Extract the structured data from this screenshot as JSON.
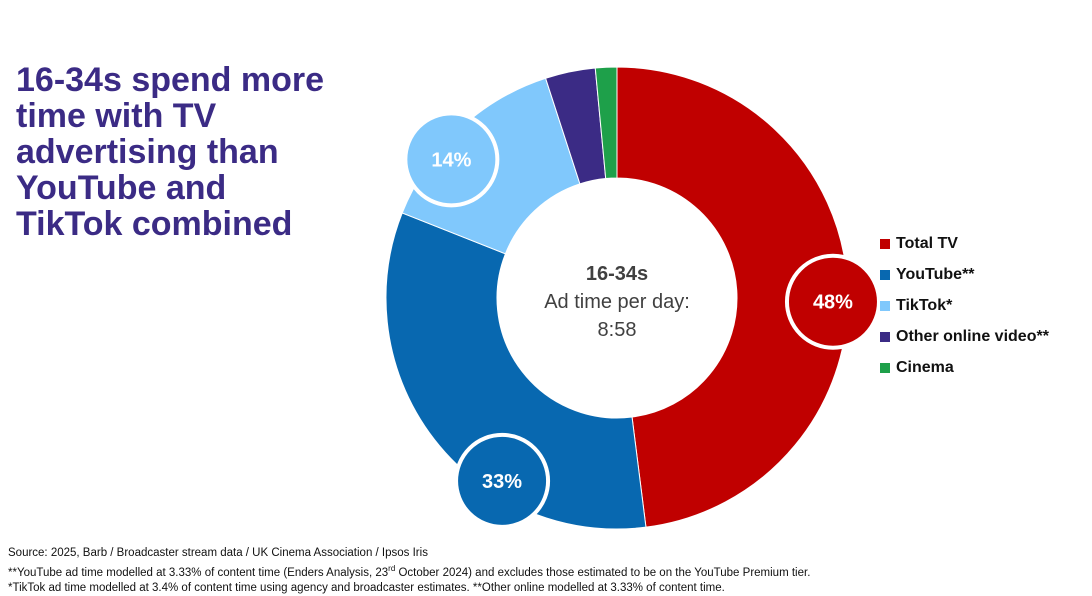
{
  "headline": "16-34s spend more time with TV advertising than YouTube and TikTok combined",
  "chart_data": {
    "type": "pie",
    "variant": "donut",
    "title": "",
    "center_label": {
      "title": "16-34s",
      "line1": "Ad time per day:",
      "line2": "8:58"
    },
    "slices": [
      {
        "name": "Total TV",
        "value": 48,
        "color": "#c00000",
        "label": "48%",
        "highlight": true
      },
      {
        "name": "YouTube**",
        "value": 33,
        "color": "#0868b0",
        "label": "33%",
        "highlight": true
      },
      {
        "name": "TikTok*",
        "value": 14,
        "color": "#80c8fc",
        "label": "14%",
        "highlight": true
      },
      {
        "name": "Other online video**",
        "value": 3.5,
        "color": "#3b2b85",
        "label": "",
        "highlight": false
      },
      {
        "name": "Cinema",
        "value": 1.5,
        "color": "#1ea04a",
        "label": "",
        "highlight": false
      }
    ],
    "legend_position": "right"
  },
  "footnotes": {
    "source": "Source: 2025, Barb / Broadcaster stream data / UK Cinema Association / Ipsos Iris",
    "youtube_pre": "**YouTube ad time modelled at 3.33% of content time (Enders Analysis, 23",
    "youtube_sup": "rd",
    "youtube_post": " October 2024) and excludes those estimated to be on the YouTube Premium tier.",
    "tiktok": "*TikTok ad time modelled at 3.4% of content time using agency and broadcaster estimates.  **Other online modelled at 3.33% of content time."
  }
}
